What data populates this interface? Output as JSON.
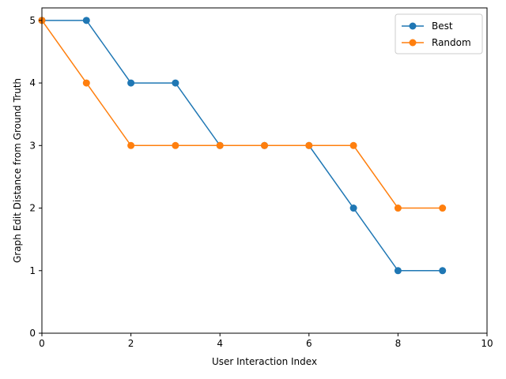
{
  "chart_data": {
    "type": "line",
    "xlabel": "User Interaction Index",
    "ylabel": "Graph Edit Distance from Ground Truth",
    "xlim": [
      0,
      10
    ],
    "ylim": [
      0,
      5.2
    ],
    "xticks": [
      0,
      2,
      4,
      6,
      8,
      10
    ],
    "yticks": [
      0,
      1,
      2,
      3,
      4,
      5
    ],
    "grid": false,
    "legend_position": "top-right",
    "series": [
      {
        "name": "Best",
        "color": "#1f77b4",
        "x": [
          0,
          1,
          2,
          3,
          4,
          5,
          6,
          7,
          8,
          9
        ],
        "y": [
          5,
          5,
          4,
          4,
          3,
          3,
          3,
          2,
          1,
          1
        ]
      },
      {
        "name": "Random",
        "color": "#ff7f0e",
        "x": [
          0,
          1,
          2,
          3,
          4,
          5,
          6,
          7,
          8,
          9
        ],
        "y": [
          5,
          4,
          3,
          3,
          3,
          3,
          3,
          3,
          2,
          2
        ]
      }
    ]
  }
}
